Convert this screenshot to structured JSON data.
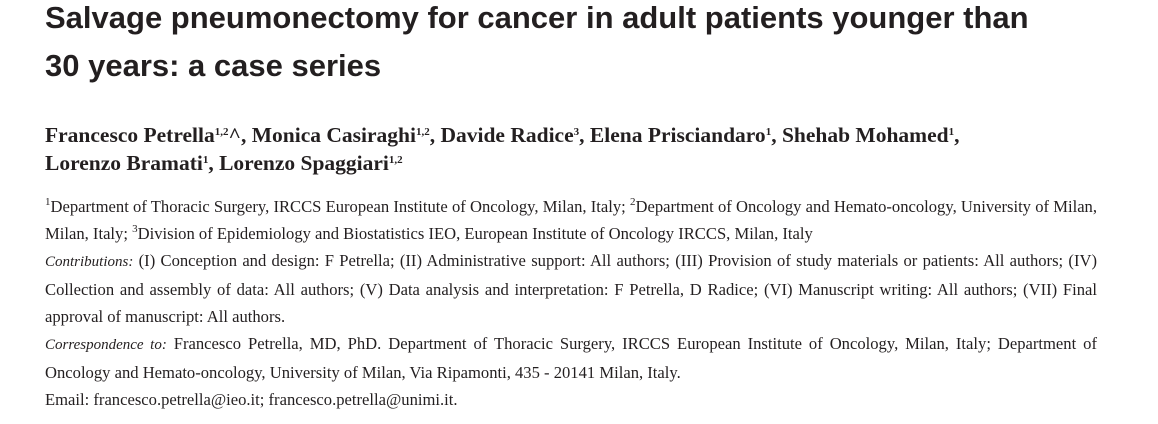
{
  "title": "Salvage pneumonectomy for cancer in adult patients younger than 30 years: a case series",
  "authors": [
    {
      "name": "Francesco Petrella",
      "sup": "1,2",
      "suffix": "^,"
    },
    {
      "name": "Monica Casiraghi",
      "sup": "1,2",
      "suffix": ","
    },
    {
      "name": "Davide Radice",
      "sup": "3",
      "suffix": ","
    },
    {
      "name": "Elena Prisciandaro",
      "sup": "1",
      "suffix": ","
    },
    {
      "name": "Shehab Mohamed",
      "sup": "1",
      "suffix": ","
    },
    {
      "name": "Lorenzo Bramati",
      "sup": "1",
      "suffix": ","
    },
    {
      "name": "Lorenzo Spaggiari",
      "sup": "1,2"
    }
  ],
  "affiliations": [
    {
      "sup": "1",
      "text": "Department of Thoracic Surgery, IRCCS European Institute of Oncology, Milan, Italy;"
    },
    {
      "sup": "2",
      "text": "Department of Oncology and Hemato-oncology, University of Milan, Milan, Italy;"
    },
    {
      "sup": "3",
      "text": "Division of Epidemiology and Biostatistics IEO, European Institute of Oncology IRCCS, Milan, Italy"
    }
  ],
  "contributions": {
    "label": "Contributions:",
    "text": "(I) Conception and design: F Petrella; (II) Administrative support: All authors; (III) Provision of study materials or patients: All authors; (IV) Collection and assembly of data: All authors; (V) Data analysis and interpretation: F Petrella, D Radice; (VI) Manuscript writing: All authors; (VII) Final approval of manuscript: All authors."
  },
  "correspondence": {
    "label": "Correspondence to:",
    "text": "Francesco Petrella, MD, PhD. Department of Thoracic Surgery, IRCCS European Institute of Oncology, Milan, Italy; Department of Oncology and Hemato-oncology, University of Milan, Via Ripamonti, 435 - 20141 Milan, Italy."
  },
  "email": "Email: francesco.petrella@ieo.it; francesco.petrella@unimi.it."
}
